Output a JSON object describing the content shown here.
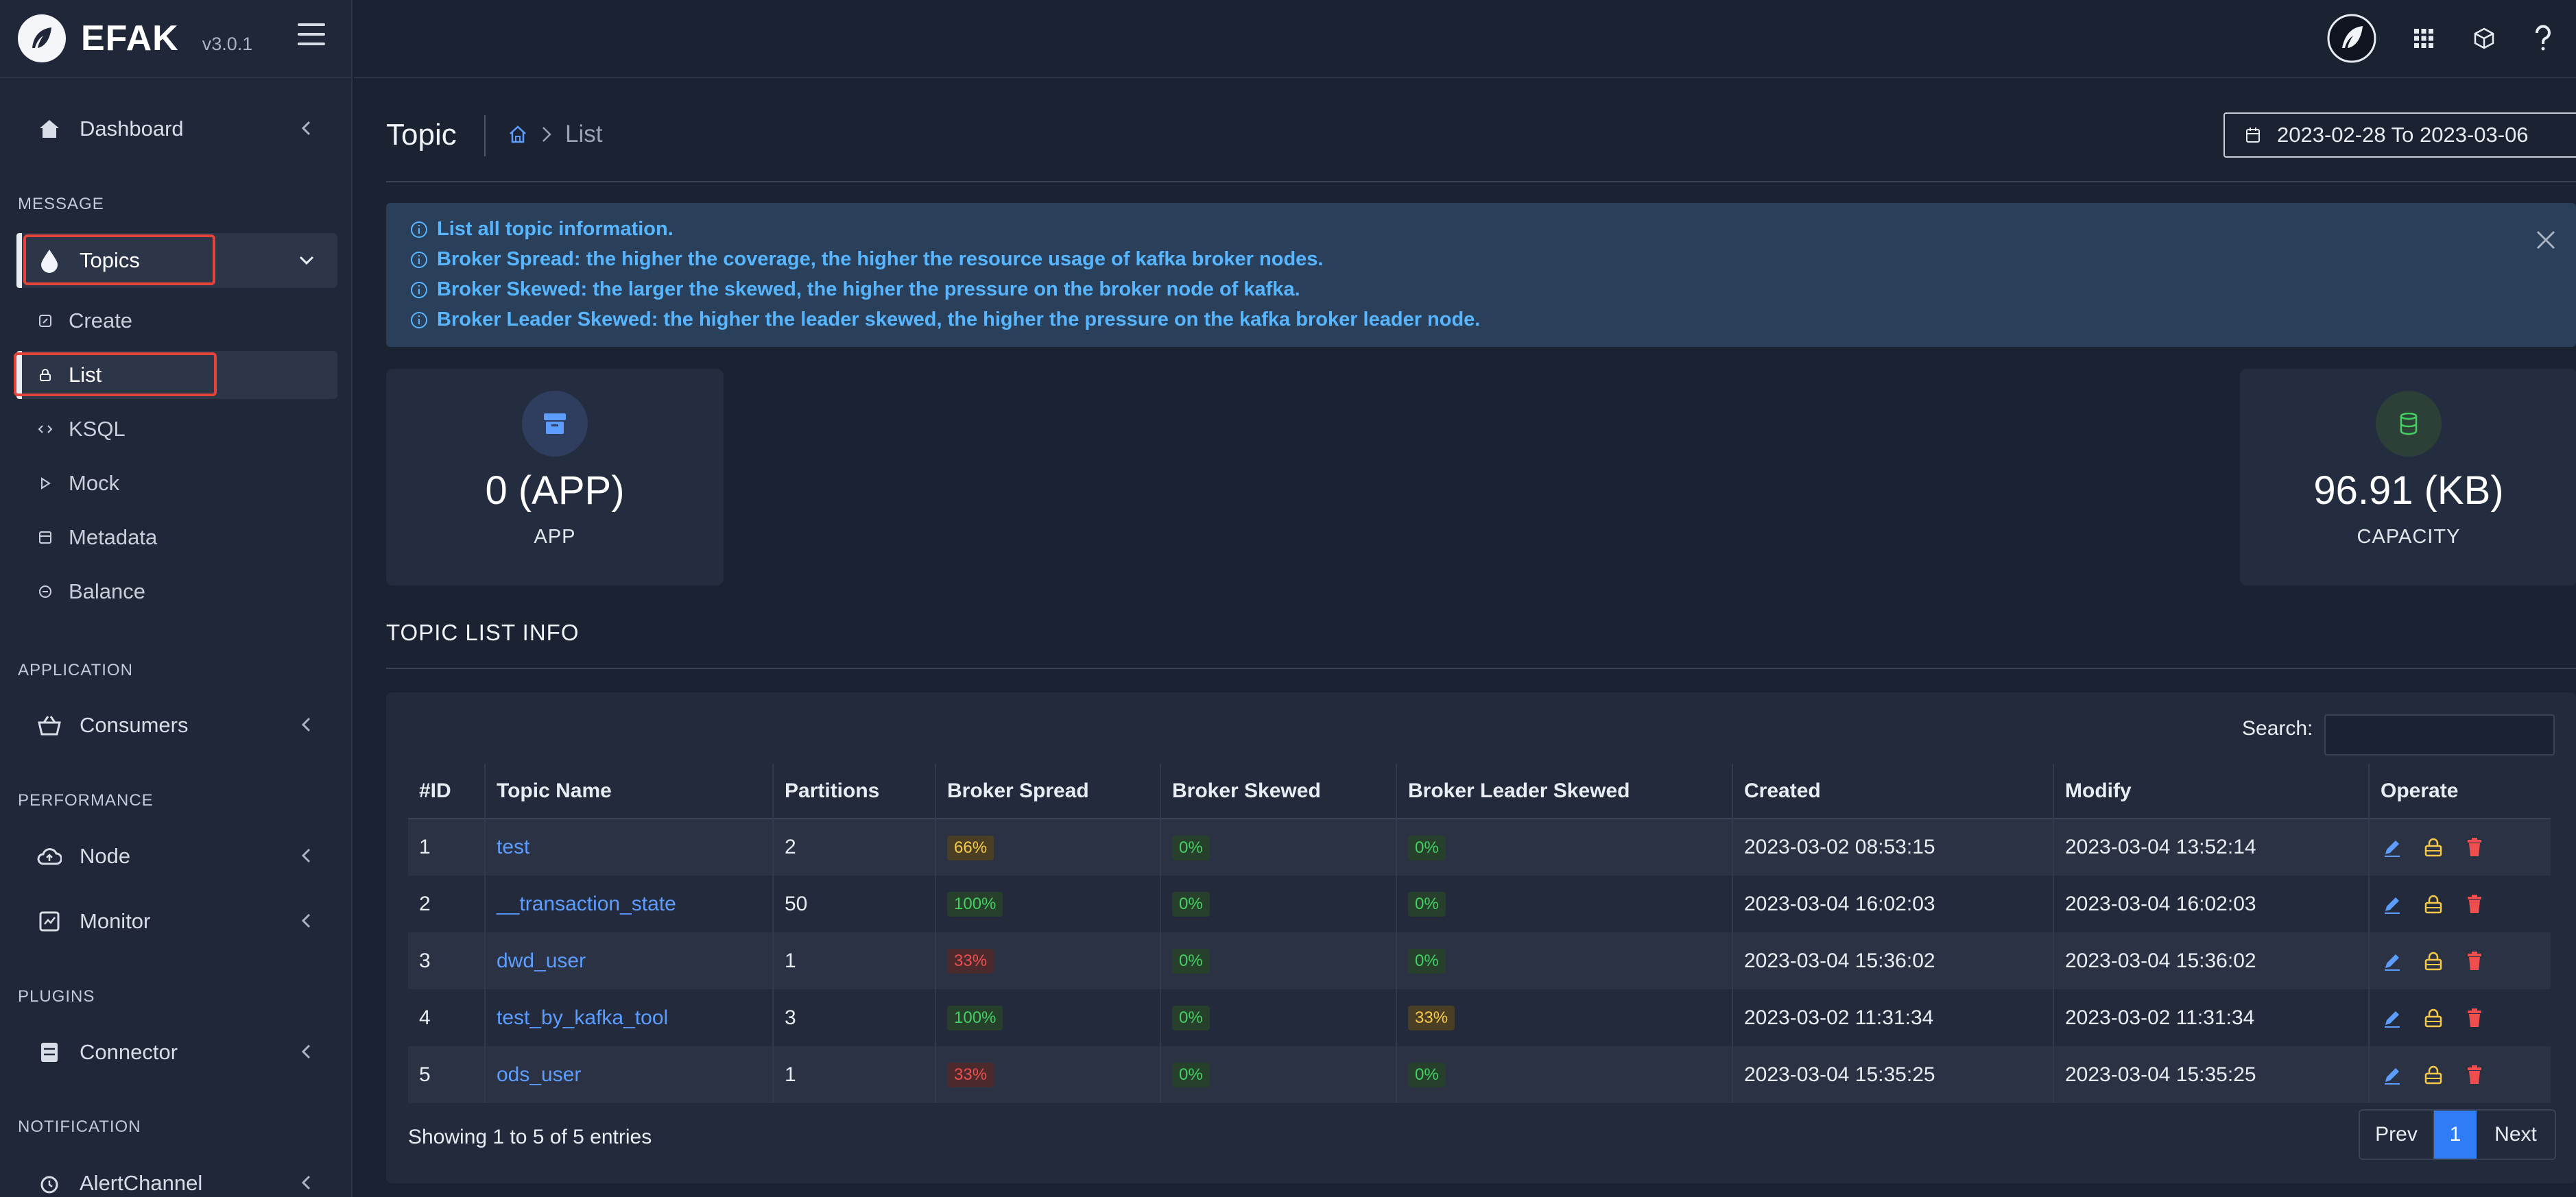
{
  "brand": {
    "name": "EFAK",
    "version": "v3.0.1"
  },
  "sidebar": {
    "dashboard": "Dashboard",
    "sections": {
      "message": "MESSAGE",
      "application": "APPLICATION",
      "performance": "PERFORMANCE",
      "plugins": "PLUGINS",
      "notification": "NOTIFICATION"
    },
    "topics": "Topics",
    "topics_sub": [
      "Create",
      "List",
      "KSQL",
      "Mock",
      "Metadata",
      "Balance"
    ],
    "consumers": "Consumers",
    "node": "Node",
    "monitor": "Monitor",
    "connector": "Connector",
    "alert_channel": "AlertChannel"
  },
  "header": {
    "title": "Topic",
    "breadcrumb": {
      "home_icon": "home-icon",
      "current": "List"
    },
    "date_range": "2023-02-28 To 2023-03-06"
  },
  "alert": {
    "lines": [
      "List all topic information.",
      "Broker Spread: the higher the coverage, the higher the resource usage of kafka broker nodes.",
      "Broker Skewed: the larger the skewed, the higher the pressure on the broker node of kafka.",
      "Broker Leader Skewed: the higher the leader skewed, the higher the pressure on the kafka broker leader node."
    ]
  },
  "cards": {
    "app": {
      "value": "0 (APP)",
      "label": "APP"
    },
    "capacity": {
      "value": "96.91 (KB)",
      "label": "CAPACITY"
    }
  },
  "topic_list": {
    "title": "TOPIC LIST INFO",
    "search_label": "Search:",
    "columns": [
      "#ID",
      "Topic Name",
      "Partitions",
      "Broker Spread",
      "Broker Skewed",
      "Broker Leader Skewed",
      "Created",
      "Modify",
      "Operate"
    ],
    "rows": [
      {
        "id": "1",
        "name": "test",
        "partitions": "2",
        "spread": "66%",
        "skewed": "0%",
        "leader_skewed": "0%",
        "created": "2023-03-02 08:53:15",
        "modify": "2023-03-04 13:52:14"
      },
      {
        "id": "2",
        "name": "__transaction_state",
        "partitions": "50",
        "spread": "100%",
        "skewed": "0%",
        "leader_skewed": "0%",
        "created": "2023-03-04 16:02:03",
        "modify": "2023-03-04 16:02:03"
      },
      {
        "id": "3",
        "name": "dwd_user",
        "partitions": "1",
        "spread": "33%",
        "skewed": "0%",
        "leader_skewed": "0%",
        "created": "2023-03-04 15:36:02",
        "modify": "2023-03-04 15:36:02"
      },
      {
        "id": "4",
        "name": "test_by_kafka_tool",
        "partitions": "3",
        "spread": "100%",
        "skewed": "0%",
        "leader_skewed": "33%",
        "created": "2023-03-02 11:31:34",
        "modify": "2023-03-02 11:31:34"
      },
      {
        "id": "5",
        "name": "ods_user",
        "partitions": "1",
        "spread": "33%",
        "skewed": "0%",
        "leader_skewed": "0%",
        "created": "2023-03-04 15:35:25",
        "modify": "2023-03-04 15:35:25"
      }
    ],
    "showing": "Showing 1 to 5 of 5 entries",
    "pager": {
      "prev": "Prev",
      "current": "1",
      "next": "Next"
    }
  },
  "colors": {
    "green": "#44d062",
    "yellow": "#f7c948",
    "red": "#ee4e4e",
    "link": "#5c9dff",
    "accent": "#2f7cf6"
  }
}
